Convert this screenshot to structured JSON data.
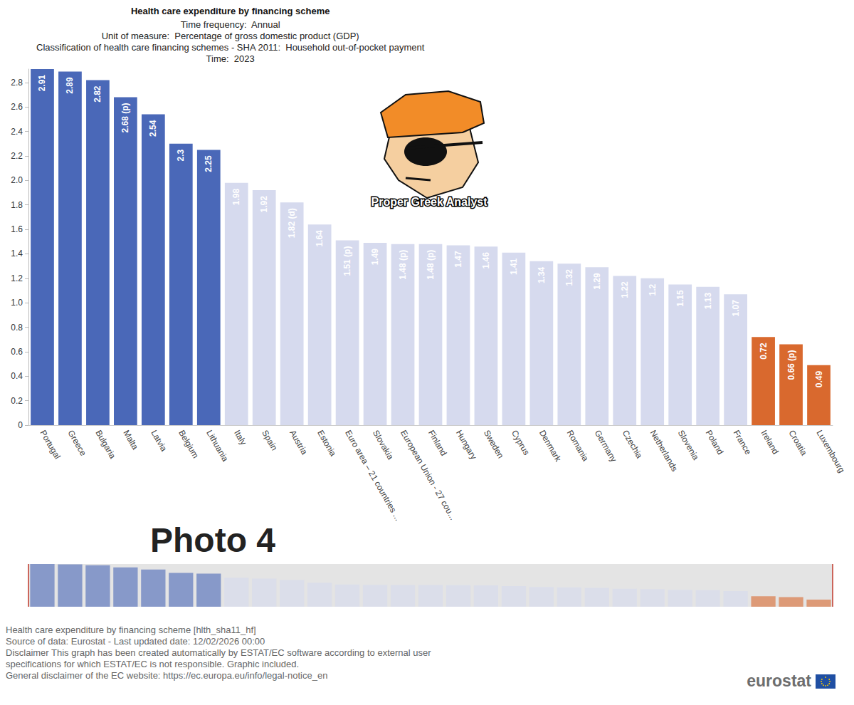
{
  "chart_data": {
    "type": "bar",
    "title": "Health care expenditure by financing scheme",
    "subtitle": [
      "Time frequency:  Annual",
      "Unit of measure:  Percentage of gross domestic product (GDP)",
      "Classification of health care financing schemes - SHA 2011:  Household out-of-pocket payment",
      "Time:  2023"
    ],
    "categories": [
      "Portugal",
      "Greece",
      "Bulgaria",
      "Malta",
      "Latvia",
      "Belgium",
      "Lithuania",
      "Italy",
      "Spain",
      "Austria",
      "Estonia",
      "Euro area – 21 countries ...",
      "Slovakia",
      "European Union - 27 cou...",
      "Finland",
      "Hungary",
      "Sweden",
      "Cyprus",
      "Denmark",
      "Romania",
      "Germany",
      "Czechia",
      "Netherlands",
      "Slovenia",
      "Poland",
      "France",
      "Ireland",
      "Croatia",
      "Luxembourg"
    ],
    "values": [
      2.91,
      2.89,
      2.82,
      2.68,
      2.54,
      2.3,
      2.25,
      1.98,
      1.92,
      1.82,
      1.64,
      1.51,
      1.49,
      1.48,
      1.48,
      1.47,
      1.46,
      1.41,
      1.34,
      1.32,
      1.29,
      1.22,
      1.2,
      1.15,
      1.13,
      1.07,
      0.72,
      0.66,
      0.49
    ],
    "value_labels": [
      "2.91",
      "2.89",
      "2.82",
      "2.68 (p)",
      "2.54",
      "2.3",
      "2.25",
      "1.98",
      "1.92",
      "1.82 (d)",
      "1.64",
      "1.51 (p)",
      "1.49",
      "1.48 (p)",
      "1.48 (p)",
      "1.47",
      "1.46",
      "1.41",
      "1.34",
      "1.32",
      "1.29",
      "1.22",
      "1.2",
      "1.15",
      "1.13",
      "1.07",
      "0.72",
      "0.66 (p)",
      "0.49"
    ],
    "colors": [
      "#4a68b8",
      "#4a68b8",
      "#4a68b8",
      "#4a68b8",
      "#4a68b8",
      "#4a68b8",
      "#4a68b8",
      "#d6daee",
      "#d6daee",
      "#d6daee",
      "#d6daee",
      "#d6daee",
      "#d6daee",
      "#d6daee",
      "#d6daee",
      "#d6daee",
      "#d6daee",
      "#d6daee",
      "#d6daee",
      "#d6daee",
      "#d6daee",
      "#d6daee",
      "#d6daee",
      "#d6daee",
      "#d6daee",
      "#d6daee",
      "#d9692e",
      "#d9692e",
      "#d9692e"
    ],
    "ylim": [
      0,
      2.91
    ],
    "yticks": [
      0,
      0.2,
      0.4,
      0.6,
      0.8,
      {
        "value": 1,
        "label": "1.0"
      },
      1.2,
      1.4,
      1.6,
      1.8,
      {
        "value": 2,
        "label": "2.0"
      },
      2.2,
      2.4,
      2.6,
      2.8
    ],
    "grid": false,
    "data_labels": true,
    "annotations": [
      "Proper Greek Analyst",
      "Photo 4"
    ],
    "footer": [
      "Health care expenditure by financing scheme [hlth_sha11_hf]",
      "Source of data: Eurostat - Last updated date: 12/02/2026 00:00",
      "Disclaimer This graph has been created automatically by ESTAT/EC software according to external user",
      "specifications for which ESTAT/EC is not responsible. Graphic included.",
      "General disclaimer of the EC website: https://ec.europa.eu/info/legal-notice_en"
    ],
    "logo": "eurostat"
  }
}
